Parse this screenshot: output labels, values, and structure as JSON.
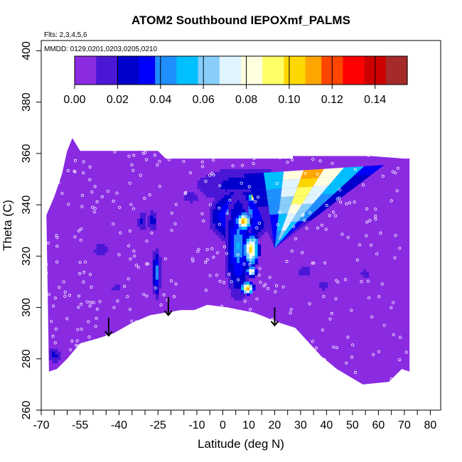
{
  "chart_data": {
    "type": "heatmap",
    "title": "ATOM2 Southbound IEPOXmf_PALMS",
    "subtitle_flights": "Flts: 2,3,4,5,6",
    "subtitle_dates": "MMDD: 0129,0201,0203,0205,0210",
    "xlabel": "Latitude (deg N)",
    "ylabel": "Theta (C)",
    "xlim": [
      -70,
      84
    ],
    "ylim": [
      260,
      404
    ],
    "x_tick_labels": [
      "-70",
      "-55",
      "-40",
      "-25",
      "-10",
      "0",
      "10",
      "20",
      "30",
      "40",
      "50",
      "60",
      "70",
      "80"
    ],
    "x_tick_values": [
      -70,
      -55,
      -40,
      -25,
      -10,
      0,
      10,
      20,
      30,
      40,
      50,
      60,
      70,
      80
    ],
    "y_tick_values": [
      260,
      280,
      300,
      320,
      340,
      360,
      380,
      400
    ],
    "y_tick_labels": [
      "260",
      "280",
      "300",
      "320",
      "340",
      "360",
      "380",
      "400"
    ],
    "colorbar": {
      "min": 0.0,
      "max": 0.155,
      "tick_values": [
        0.0,
        0.02,
        0.04,
        0.06,
        0.08,
        0.1,
        0.12,
        0.14
      ],
      "tick_labels": [
        "0.00",
        "0.02",
        "0.04",
        "0.06",
        "0.08",
        "0.10",
        "0.12",
        "0.14"
      ],
      "colors": [
        "#8a2be2",
        "#4b17d6",
        "#0000cd",
        "#0000ff",
        "#1f8fff",
        "#00bfff",
        "#87cefa",
        "#e0f4ff",
        "#ffffe0",
        "#ffff66",
        "#ffd700",
        "#ffa500",
        "#ff4500",
        "#ff0000",
        "#cd0000",
        "#a52a2a"
      ]
    },
    "background_value": 0.0,
    "domain_top": [
      [
        -68,
        336
      ],
      [
        -65,
        343
      ],
      [
        -62,
        352
      ],
      [
        -60,
        361
      ],
      [
        -58,
        366
      ],
      [
        -55,
        361
      ],
      [
        -50,
        361
      ],
      [
        -40,
        361
      ],
      [
        -25,
        361
      ],
      [
        -22,
        358
      ],
      [
        -10,
        358
      ],
      [
        0,
        358
      ],
      [
        15,
        358
      ],
      [
        27,
        358
      ],
      [
        27,
        359
      ],
      [
        57,
        359
      ],
      [
        70,
        358
      ],
      [
        72,
        358
      ]
    ],
    "domain_bottom": [
      [
        72,
        275
      ],
      [
        69,
        276
      ],
      [
        64,
        271
      ],
      [
        54,
        270
      ],
      [
        44,
        276
      ],
      [
        38,
        281
      ],
      [
        28,
        292
      ],
      [
        22,
        294
      ],
      [
        17,
        296
      ],
      [
        12,
        298
      ],
      [
        7,
        299
      ],
      [
        2,
        300
      ],
      [
        -6,
        301
      ],
      [
        -11,
        299
      ],
      [
        -16,
        299
      ],
      [
        -22,
        298
      ],
      [
        -28,
        297
      ],
      [
        -35,
        294
      ],
      [
        -42,
        290
      ],
      [
        -48,
        288
      ],
      [
        -55,
        286
      ],
      [
        -60,
        280
      ],
      [
        -64,
        276
      ],
      [
        -67,
        275
      ]
    ],
    "hotspots": [
      {
        "x": [
          -27,
          -24
        ],
        "y": [
          304,
          323
        ],
        "value": 0.05
      },
      {
        "x": [
          -33,
          -29
        ],
        "y": [
          329,
          338
        ],
        "value": 0.025
      },
      {
        "x": [
          -29,
          -25
        ],
        "y": [
          330,
          338
        ],
        "value": 0.03
      },
      {
        "x": [
          -52,
          -42
        ],
        "y": [
          318,
          327
        ],
        "value": 0.015
      },
      {
        "x": [
          -68,
          -62
        ],
        "y": [
          278,
          285
        ],
        "value": 0.025
      },
      {
        "x": [
          -44,
          -38
        ],
        "y": [
          305,
          310
        ],
        "value": 0.015
      },
      {
        "x": [
          -16,
          -8
        ],
        "y": [
          340,
          346
        ],
        "value": 0.02
      },
      {
        "x": [
          -12,
          30
        ],
        "y": [
          340,
          355
        ],
        "value": 0.03
      },
      {
        "x": [
          -5,
          18
        ],
        "y": [
          325,
          346
        ],
        "value": 0.06
      },
      {
        "x": [
          1,
          11
        ],
        "y": [
          303,
          345
        ],
        "value": 0.05
      },
      {
        "x": [
          5,
          11
        ],
        "y": [
          330,
          337
        ],
        "value": 0.12
      },
      {
        "x": [
          8,
          14
        ],
        "y": [
          316,
          329
        ],
        "value": 0.11
      },
      {
        "x": [
          9,
          13
        ],
        "y": [
          312,
          316
        ],
        "value": 0.1
      },
      {
        "x": [
          10,
          14
        ],
        "y": [
          341,
          345
        ],
        "value": 0.12
      },
      {
        "x": [
          12,
          22
        ],
        "y": [
          338,
          350
        ],
        "value": 0.09
      },
      {
        "x": [
          7,
          12
        ],
        "y": [
          305,
          310
        ],
        "value": 0.12
      },
      {
        "x": [
          27,
          36
        ],
        "y": [
          310,
          318
        ],
        "value": 0.015
      },
      {
        "x": [
          35,
          43
        ],
        "y": [
          305,
          312
        ],
        "value": 0.015
      },
      {
        "x": [
          52,
          58
        ],
        "y": [
          310,
          316
        ],
        "value": 0.015
      }
    ],
    "triangle_plume": {
      "apex": [
        20,
        323
      ],
      "top_left": [
        8,
        352
      ],
      "top_right": [
        70,
        356
      ],
      "peak_value": 0.11
    },
    "arrows_x": [
      -44,
      -21,
      20
    ],
    "arrows_y_tail": [
      296,
      304,
      300
    ],
    "arrows_y_head": [
      289,
      297,
      293
    ]
  }
}
